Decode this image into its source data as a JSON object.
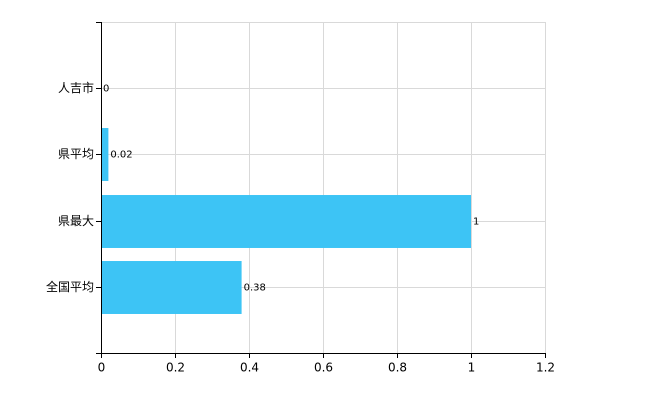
{
  "chart_data": {
    "type": "hbar",
    "categories": [
      "人吉市",
      "県平均",
      "県最大",
      "全国平均"
    ],
    "values": [
      0,
      0.02,
      1,
      0.38
    ],
    "color": "#3dc4f5",
    "xlim": [
      0,
      1.2
    ],
    "xticks": [
      0,
      0.2,
      0.4,
      0.6,
      0.8,
      1,
      1.2
    ],
    "grid": true
  }
}
